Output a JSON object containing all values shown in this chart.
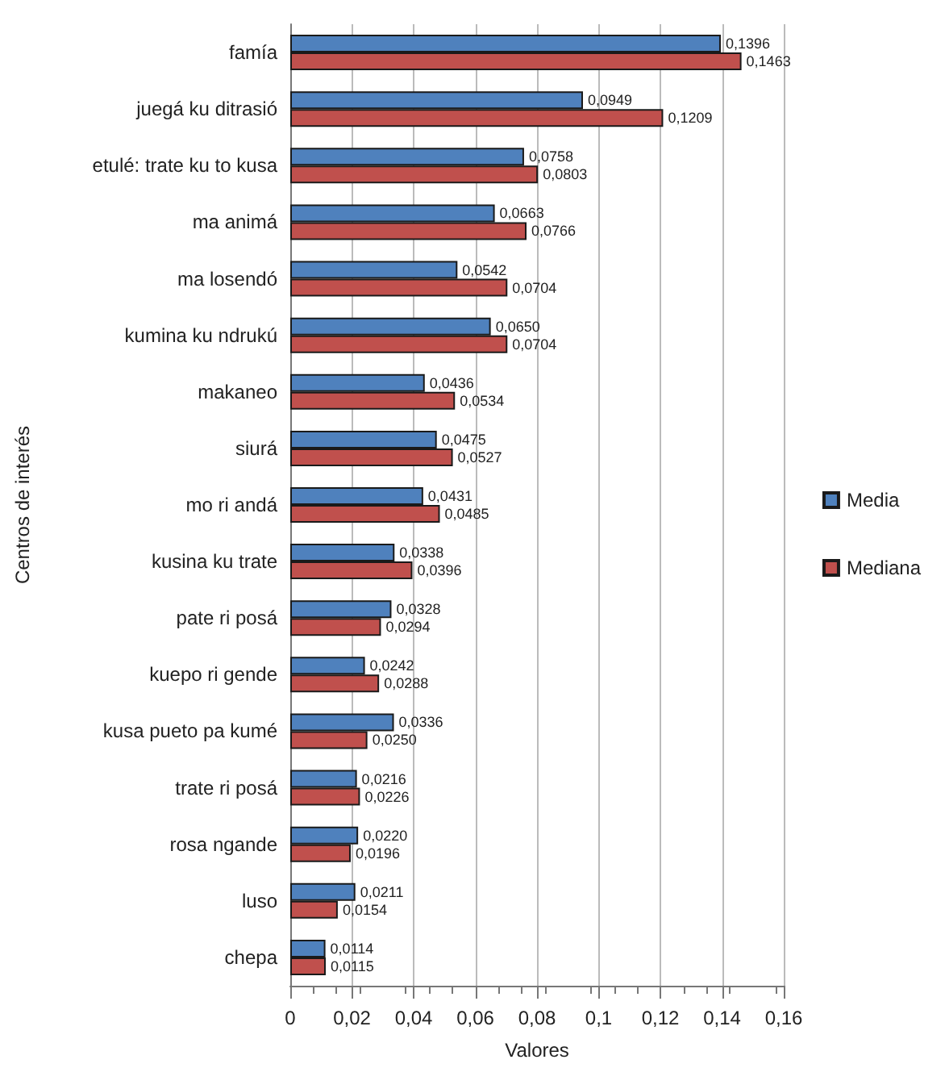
{
  "chart_data": {
    "type": "bar",
    "orientation": "horizontal",
    "xlabel": "Valores",
    "ylabel": "Centros de interés",
    "categories": [
      "famía",
      "juegá ku ditrasió",
      "etulé: trate ku to kusa",
      "ma animá",
      "ma losendó",
      "kumina ku ndrukú",
      "makaneo",
      "siurá",
      "mo ri andá",
      "kusina ku trate",
      "pate ri posá",
      "kuepo ri gende",
      "kusa pueto pa kumé",
      "trate ri posá",
      "rosa ngande",
      "luso",
      "chepa"
    ],
    "series": [
      {
        "name": "Media",
        "color": "#4f81bd",
        "values": [
          0.1396,
          0.0949,
          0.0758,
          0.0663,
          0.0542,
          0.065,
          0.0436,
          0.0475,
          0.0431,
          0.0338,
          0.0328,
          0.0242,
          0.0336,
          0.0216,
          0.022,
          0.0211,
          0.0114
        ],
        "value_labels": [
          "0,1396",
          "0,0949",
          "0,0758",
          "0,0663",
          "0,0542",
          "0,0650",
          "0,0436",
          "0,0475",
          "0,0431",
          "0,0338",
          "0,0328",
          "0,0242",
          "0,0336",
          "0,0216",
          "0,0220",
          "0,0211",
          "0,0114"
        ]
      },
      {
        "name": "Mediana",
        "color": "#c0504d",
        "values": [
          0.1463,
          0.1209,
          0.0803,
          0.0766,
          0.0704,
          0.0704,
          0.0534,
          0.0527,
          0.0485,
          0.0396,
          0.0294,
          0.0288,
          0.025,
          0.0226,
          0.0196,
          0.0154,
          0.0115
        ],
        "value_labels": [
          "0,1463",
          "0,1209",
          "0,0803",
          "0,0766",
          "0,0704",
          "0,0704",
          "0,0534",
          "0,0527",
          "0,0485",
          "0,0396",
          "0,0294",
          "0,0288",
          "0,0250",
          "0,0226",
          "0,0196",
          "0,0154",
          "0,0115"
        ]
      }
    ],
    "xlim": [
      0,
      0.16
    ],
    "xticks": [
      0,
      {
        "value": 0.02,
        "label": "0,02"
      },
      {
        "value": 0.04,
        "label": "0,04"
      },
      {
        "value": 0.06,
        "label": "0,06"
      },
      {
        "value": 0.08,
        "label": "0,08"
      },
      {
        "value": 0.1,
        "label": "0,1"
      },
      {
        "value": 0.12,
        "label": "0,12"
      },
      {
        "value": 0.14,
        "label": "0,14"
      },
      {
        "value": 0.16,
        "label": "0,16"
      }
    ],
    "grid": "x",
    "legend": "right"
  }
}
